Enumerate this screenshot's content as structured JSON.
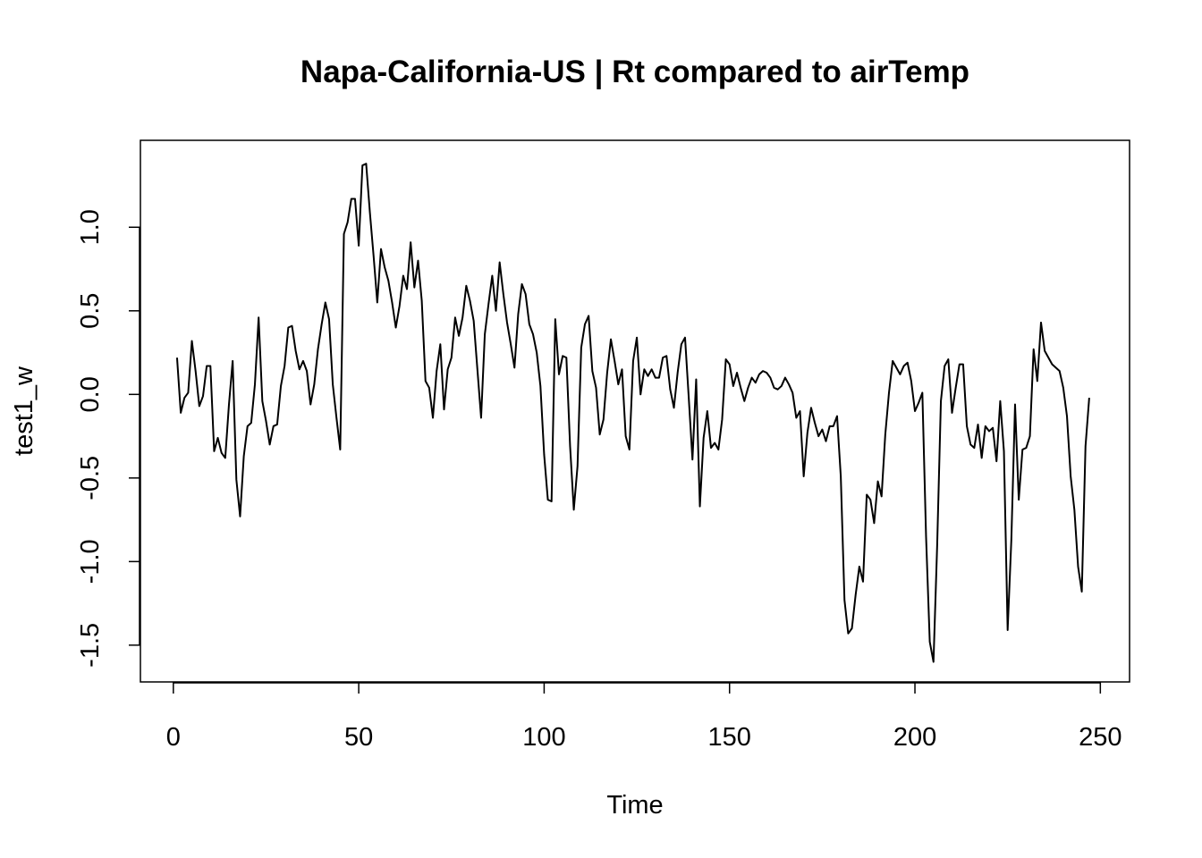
{
  "chart_data": {
    "type": "line",
    "title": "Napa-California-US | Rt compared to airTemp",
    "xlabel": "Time",
    "ylabel": "test1_w",
    "xlim": [
      1,
      248
    ],
    "ylim": [
      -1.6,
      1.4
    ],
    "x_ticks": [
      0,
      50,
      100,
      150,
      200,
      250
    ],
    "x_tick_labels": [
      "0",
      "50",
      "100",
      "150",
      "200",
      "250"
    ],
    "y_ticks": [
      -1.5,
      -1.0,
      -0.5,
      0.0,
      0.5,
      1.0
    ],
    "y_tick_labels": [
      "-1.5",
      "-1.0",
      "-0.5",
      "0.0",
      "0.5",
      "1.0"
    ],
    "grid": false,
    "legend": "none",
    "line_color": "#000000",
    "series": [
      {
        "x_start": 1,
        "x_step": 1,
        "values": [
          0.22,
          -0.11,
          -0.02,
          0.01,
          0.32,
          0.14,
          -0.07,
          -0.01,
          0.17,
          0.17,
          -0.34,
          -0.26,
          -0.35,
          -0.38,
          -0.06,
          0.2,
          -0.51,
          -0.73,
          -0.37,
          -0.19,
          -0.17,
          0.06,
          0.46,
          -0.04,
          -0.16,
          -0.3,
          -0.19,
          -0.18,
          0.05,
          0.17,
          0.4,
          0.41,
          0.26,
          0.15,
          0.2,
          0.14,
          -0.06,
          0.06,
          0.27,
          0.42,
          0.55,
          0.45,
          0.06,
          -0.14,
          -0.33,
          0.96,
          1.03,
          1.17,
          1.17,
          0.89,
          1.37,
          1.38,
          1.09,
          0.83,
          0.55,
          0.87,
          0.76,
          0.68,
          0.55,
          0.4,
          0.53,
          0.71,
          0.63,
          0.91,
          0.64,
          0.8,
          0.56,
          0.08,
          0.04,
          -0.14,
          0.14,
          0.3,
          -0.09,
          0.15,
          0.22,
          0.46,
          0.35,
          0.46,
          0.65,
          0.56,
          0.44,
          0.15,
          -0.14,
          0.36,
          0.54,
          0.71,
          0.5,
          0.79,
          0.6,
          0.43,
          0.3,
          0.16,
          0.48,
          0.66,
          0.6,
          0.42,
          0.36,
          0.25,
          0.05,
          -0.36,
          -0.63,
          -0.64,
          0.45,
          0.12,
          0.23,
          0.22,
          -0.31,
          -0.69,
          -0.43,
          0.28,
          0.42,
          0.47,
          0.14,
          0.04,
          -0.24,
          -0.15,
          0.13,
          0.33,
          0.2,
          0.06,
          0.15,
          -0.25,
          -0.33,
          0.2,
          0.34,
          0.0,
          0.15,
          0.11,
          0.15,
          0.1,
          0.1,
          0.22,
          0.23,
          0.03,
          -0.08,
          0.13,
          0.3,
          0.34,
          -0.02,
          -0.39,
          0.09,
          -0.67,
          -0.26,
          -0.1,
          -0.32,
          -0.29,
          -0.33,
          -0.15,
          0.21,
          0.18,
          0.05,
          0.13,
          0.04,
          -0.04,
          0.04,
          0.1,
          0.07,
          0.12,
          0.14,
          0.13,
          0.1,
          0.04,
          0.03,
          0.05,
          0.1,
          0.06,
          0.01,
          -0.14,
          -0.1,
          -0.49,
          -0.23,
          -0.08,
          -0.17,
          -0.25,
          -0.21,
          -0.28,
          -0.19,
          -0.19,
          -0.13,
          -0.49,
          -1.23,
          -1.43,
          -1.4,
          -1.2,
          -1.03,
          -1.12,
          -0.6,
          -0.63,
          -0.77,
          -0.52,
          -0.61,
          -0.24,
          0.01,
          0.2,
          0.16,
          0.12,
          0.17,
          0.19,
          0.08,
          -0.1,
          -0.05,
          0.01,
          -0.85,
          -1.48,
          -1.6,
          -0.9,
          -0.04,
          0.17,
          0.21,
          -0.11,
          0.04,
          0.18,
          0.18,
          -0.19,
          -0.3,
          -0.32,
          -0.18,
          -0.38,
          -0.19,
          -0.22,
          -0.2,
          -0.4,
          -0.04,
          -0.34,
          -1.41,
          -0.87,
          -0.06,
          -0.63,
          -0.33,
          -0.32,
          -0.25,
          0.27,
          0.08,
          0.43,
          0.26,
          0.22,
          0.18,
          0.16,
          0.14,
          0.04,
          -0.13,
          -0.49,
          -0.69,
          -1.03,
          -1.18,
          -0.31,
          -0.02
        ]
      }
    ]
  }
}
